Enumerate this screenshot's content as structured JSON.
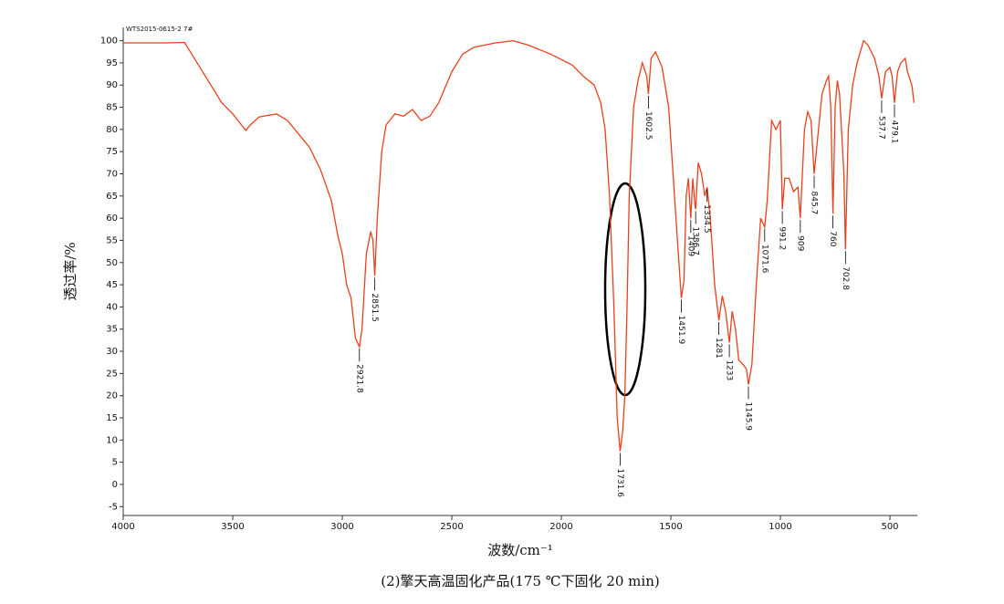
{
  "chart_data": {
    "type": "line",
    "x_label": "波数/cm⁻¹",
    "y_label": "透过率/%",
    "caption": "(2)擎天高温固化产品(175 ℃下固化 20 min)",
    "xlim": [
      4000,
      375
    ],
    "ylim": [
      -7,
      103
    ],
    "xticks": [
      4000,
      3500,
      3000,
      2500,
      2000,
      1500,
      1000,
      500
    ],
    "yticks": [
      -5,
      0,
      5,
      10,
      15,
      20,
      25,
      30,
      35,
      40,
      45,
      50,
      55,
      60,
      65,
      70,
      75,
      80,
      85,
      90,
      95,
      100
    ],
    "x": [
      4000,
      3800,
      3720,
      3700,
      3650,
      3600,
      3550,
      3500,
      3460,
      3440,
      3420,
      3380,
      3300,
      3250,
      3200,
      3150,
      3100,
      3050,
      3020,
      3000,
      2980,
      2960,
      2940,
      2921.8,
      2910,
      2890,
      2870,
      2860,
      2851.5,
      2840,
      2820,
      2800,
      2760,
      2720,
      2680,
      2640,
      2600,
      2560,
      2500,
      2450,
      2400,
      2300,
      2220,
      2150,
      2050,
      1950,
      1900,
      1850,
      1820,
      1800,
      1780,
      1760,
      1745,
      1731.6,
      1720,
      1710,
      1700,
      1690,
      1670,
      1650,
      1630,
      1610,
      1602.5,
      1590,
      1570,
      1540,
      1510,
      1490,
      1470,
      1451.9,
      1440,
      1430,
      1420,
      1409,
      1400,
      1390,
      1386.7,
      1375,
      1360,
      1345,
      1334.5,
      1320,
      1300,
      1281,
      1265,
      1250,
      1233,
      1220,
      1205,
      1190,
      1170,
      1155,
      1145.9,
      1130,
      1110,
      1090,
      1071.6,
      1060,
      1040,
      1020,
      1000,
      991.2,
      980,
      960,
      940,
      920,
      909,
      890,
      875,
      860,
      845.7,
      830,
      810,
      790,
      780,
      770,
      760,
      750,
      740,
      730,
      710,
      702.8,
      690,
      670,
      650,
      620,
      600,
      570,
      550,
      537.7,
      520,
      500,
      490,
      479.1,
      465,
      450,
      430,
      420,
      400,
      390
    ],
    "series": [
      {
        "name": "WTS2015-0615-2 7#",
        "color": "#e8401c",
        "values": [
          99.5,
          99.5,
          99.6,
          98,
          94,
          90,
          86,
          83.5,
          81,
          79.8,
          81,
          82.8,
          83.5,
          82,
          79,
          76,
          71,
          64,
          56,
          52,
          45,
          42,
          33,
          31,
          35,
          52,
          57,
          55,
          47,
          60,
          75,
          81,
          83.5,
          83,
          84.5,
          82,
          83,
          86,
          93,
          97,
          98.5,
          99.5,
          100,
          99,
          97,
          94.5,
          92,
          90,
          86,
          80,
          65,
          40,
          15,
          7.5,
          12,
          20,
          40,
          65,
          85,
          91,
          95,
          92,
          88,
          96,
          97.5,
          94,
          85,
          70,
          55,
          42,
          46,
          65,
          69,
          60,
          69,
          63,
          62,
          72.5,
          70,
          65,
          67,
          60,
          45,
          37,
          42.5,
          39,
          32,
          39,
          35,
          28,
          27,
          26,
          22.5,
          27,
          45,
          60,
          58,
          64,
          82,
          80,
          82,
          62,
          69,
          69,
          66,
          67,
          60,
          80,
          84,
          82,
          70,
          78,
          88,
          91,
          92,
          85,
          61,
          85,
          91,
          88,
          70,
          53,
          80,
          90,
          95,
          100,
          99,
          96,
          92,
          87,
          93,
          94,
          92,
          86,
          93,
          95,
          96,
          93,
          90,
          86
        ]
      }
    ],
    "peaks": [
      2921.8,
      2851.5,
      1731.6,
      1602.5,
      1451.9,
      1409.0,
      1386.7,
      1334.5,
      1281.0,
      1233.0,
      1145.9,
      1071.6,
      991.2,
      909.0,
      845.7,
      760.0,
      702.8,
      537.7,
      479.1
    ]
  }
}
